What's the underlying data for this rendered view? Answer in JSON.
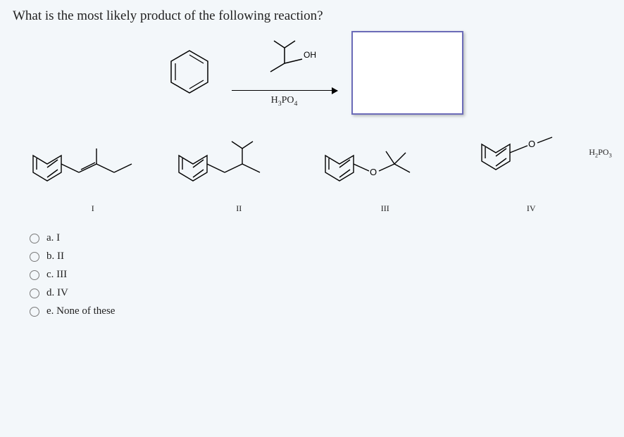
{
  "question": "What is the most likely product of the following reaction?",
  "scheme": {
    "reagent_top_oh": "OH",
    "reagent_bottom": "H<sub>3</sub>PO<sub>4</sub>"
  },
  "option_labels": {
    "i": "I",
    "ii": "II",
    "iii": "III",
    "iv": "IV"
  },
  "phosphite_label": "H<sub>2</sub>PO<sub>3</sub>",
  "answers": {
    "a": "a. I",
    "b": "b. II",
    "c": "c. III",
    "d": "d. IV",
    "e": "e. None of these"
  },
  "colors": {
    "page_bg": "#f3f7fa",
    "box_border": "#6b6bb8",
    "stroke": "#000000"
  }
}
